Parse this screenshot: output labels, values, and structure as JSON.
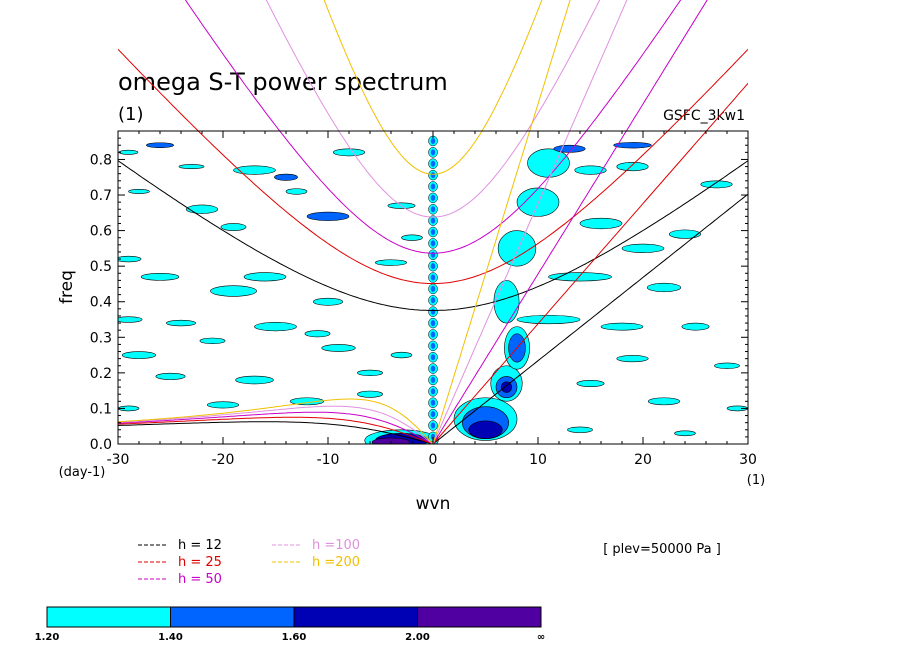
{
  "chart_data": {
    "type": "contour",
    "title": "omega S-T power spectrum",
    "subtitle": "(1)",
    "model_label": "GSFC_3kw1",
    "xlabel": "wvn",
    "ylabel": "freq",
    "x_unit_label": "(1)",
    "y_unit_label": "(day-1)",
    "xlim": [
      -30,
      30
    ],
    "ylim": [
      0,
      0.88
    ],
    "xticks": [
      "-30",
      "-20",
      "-10",
      "0",
      "10",
      "20",
      "30"
    ],
    "yticks": [
      "0.0",
      "0.1",
      "0.2",
      "0.3",
      "0.4",
      "0.5",
      "0.6",
      "0.7",
      "0.8"
    ],
    "annotation": "[ plev=50000 Pa ]",
    "legend_lines": [
      {
        "label": "h = 12",
        "color": "#000000",
        "h": 12
      },
      {
        "label": "h = 25",
        "color": "#e00000",
        "h": 25
      },
      {
        "label": "h = 50",
        "color": "#c800c8",
        "h": 50
      },
      {
        "label": "h =100",
        "color": "#e090e0",
        "h": 100
      },
      {
        "label": "h =200",
        "color": "#f0c000",
        "h": 200
      }
    ],
    "colorbar": {
      "labels": [
        "1.20",
        "1.40",
        "1.60",
        "2.00",
        "∞"
      ],
      "colors": [
        "#00ffff",
        "#0064ff",
        "#0000b4",
        "#5000a0"
      ]
    },
    "contour_blobs": [
      {
        "x": -29,
        "y": 0.82,
        "rx": 0.9,
        "ry": 0.006,
        "level": 0
      },
      {
        "x": -26,
        "y": 0.84,
        "rx": 1.3,
        "ry": 0.007,
        "level": 1
      },
      {
        "x": -23,
        "y": 0.78,
        "rx": 1.2,
        "ry": 0.006,
        "level": 0
      },
      {
        "x": -17,
        "y": 0.77,
        "rx": 2.0,
        "ry": 0.012,
        "level": 0
      },
      {
        "x": -14,
        "y": 0.75,
        "rx": 1.1,
        "ry": 0.009,
        "level": 1
      },
      {
        "x": -8,
        "y": 0.82,
        "rx": 1.5,
        "ry": 0.01,
        "level": 0
      },
      {
        "x": -28,
        "y": 0.71,
        "rx": 1.0,
        "ry": 0.006,
        "level": 0
      },
      {
        "x": -22,
        "y": 0.66,
        "rx": 1.5,
        "ry": 0.012,
        "level": 0
      },
      {
        "x": -13,
        "y": 0.71,
        "rx": 1.0,
        "ry": 0.008,
        "level": 0
      },
      {
        "x": -10,
        "y": 0.64,
        "rx": 2.0,
        "ry": 0.012,
        "level": 1
      },
      {
        "x": -3,
        "y": 0.67,
        "rx": 1.3,
        "ry": 0.008,
        "level": 0
      },
      {
        "x": -19,
        "y": 0.61,
        "rx": 1.2,
        "ry": 0.01,
        "level": 0
      },
      {
        "x": -29,
        "y": 0.52,
        "rx": 1.2,
        "ry": 0.008,
        "level": 0
      },
      {
        "x": -26,
        "y": 0.47,
        "rx": 1.8,
        "ry": 0.01,
        "level": 0
      },
      {
        "x": -16,
        "y": 0.47,
        "rx": 2.0,
        "ry": 0.012,
        "level": 0
      },
      {
        "x": -4,
        "y": 0.51,
        "rx": 1.5,
        "ry": 0.008,
        "level": 0
      },
      {
        "x": -2,
        "y": 0.58,
        "rx": 1.0,
        "ry": 0.008,
        "level": 0
      },
      {
        "x": -19,
        "y": 0.43,
        "rx": 2.2,
        "ry": 0.015,
        "level": 0
      },
      {
        "x": -10,
        "y": 0.4,
        "rx": 1.4,
        "ry": 0.01,
        "level": 0
      },
      {
        "x": -29,
        "y": 0.35,
        "rx": 1.3,
        "ry": 0.008,
        "level": 0
      },
      {
        "x": -24,
        "y": 0.34,
        "rx": 1.4,
        "ry": 0.008,
        "level": 0
      },
      {
        "x": -15,
        "y": 0.33,
        "rx": 2.0,
        "ry": 0.012,
        "level": 0
      },
      {
        "x": -11,
        "y": 0.31,
        "rx": 1.2,
        "ry": 0.009,
        "level": 0
      },
      {
        "x": -28,
        "y": 0.25,
        "rx": 1.6,
        "ry": 0.01,
        "level": 0
      },
      {
        "x": -21,
        "y": 0.29,
        "rx": 1.2,
        "ry": 0.008,
        "level": 0
      },
      {
        "x": -9,
        "y": 0.27,
        "rx": 1.6,
        "ry": 0.01,
        "level": 0
      },
      {
        "x": -3,
        "y": 0.25,
        "rx": 1.0,
        "ry": 0.008,
        "level": 0
      },
      {
        "x": -25,
        "y": 0.19,
        "rx": 1.4,
        "ry": 0.009,
        "level": 0
      },
      {
        "x": -17,
        "y": 0.18,
        "rx": 1.8,
        "ry": 0.011,
        "level": 0
      },
      {
        "x": -6,
        "y": 0.2,
        "rx": 1.2,
        "ry": 0.008,
        "level": 0
      },
      {
        "x": -29,
        "y": 0.1,
        "rx": 1.0,
        "ry": 0.007,
        "level": 0
      },
      {
        "x": -20,
        "y": 0.11,
        "rx": 1.5,
        "ry": 0.009,
        "level": 0
      },
      {
        "x": -12,
        "y": 0.12,
        "rx": 1.6,
        "ry": 0.01,
        "level": 0
      },
      {
        "x": -6,
        "y": 0.14,
        "rx": 1.2,
        "ry": 0.009,
        "level": 0
      },
      {
        "x": -3,
        "y": 0.01,
        "rx": 3.5,
        "ry": 0.03,
        "level": 0
      },
      {
        "x": -3,
        "y": 0.01,
        "rx": 2.5,
        "ry": 0.02,
        "level": 2
      },
      {
        "x": -4,
        "y": 0.005,
        "rx": 1.8,
        "ry": 0.012,
        "level": 3
      },
      {
        "x": 5,
        "y": 0.07,
        "rx": 3.0,
        "ry": 0.06,
        "level": 0
      },
      {
        "x": 5,
        "y": 0.06,
        "rx": 2.2,
        "ry": 0.045,
        "level": 1
      },
      {
        "x": 5,
        "y": 0.04,
        "rx": 1.6,
        "ry": 0.025,
        "level": 2
      },
      {
        "x": 7,
        "y": 0.17,
        "rx": 1.5,
        "ry": 0.05,
        "level": 0
      },
      {
        "x": 7,
        "y": 0.16,
        "rx": 1.0,
        "ry": 0.03,
        "level": 1
      },
      {
        "x": 7,
        "y": 0.16,
        "rx": 0.5,
        "ry": 0.015,
        "level": 2
      },
      {
        "x": 8,
        "y": 0.27,
        "rx": 1.2,
        "ry": 0.06,
        "level": 0
      },
      {
        "x": 8,
        "y": 0.27,
        "rx": 0.8,
        "ry": 0.04,
        "level": 1
      },
      {
        "x": 7,
        "y": 0.4,
        "rx": 1.2,
        "ry": 0.06,
        "level": 0
      },
      {
        "x": 8,
        "y": 0.55,
        "rx": 1.8,
        "ry": 0.05,
        "level": 0
      },
      {
        "x": 10,
        "y": 0.68,
        "rx": 2.0,
        "ry": 0.04,
        "level": 0
      },
      {
        "x": 11,
        "y": 0.79,
        "rx": 2.0,
        "ry": 0.04,
        "level": 0
      },
      {
        "x": 13,
        "y": 0.83,
        "rx": 1.5,
        "ry": 0.01,
        "level": 1
      },
      {
        "x": 15,
        "y": 0.77,
        "rx": 1.5,
        "ry": 0.012,
        "level": 0
      },
      {
        "x": 11,
        "y": 0.35,
        "rx": 3.0,
        "ry": 0.012,
        "level": 0
      },
      {
        "x": 14,
        "y": 0.47,
        "rx": 3.0,
        "ry": 0.012,
        "level": 0
      },
      {
        "x": 16,
        "y": 0.62,
        "rx": 2.0,
        "ry": 0.015,
        "level": 0
      },
      {
        "x": 20,
        "y": 0.55,
        "rx": 2.0,
        "ry": 0.012,
        "level": 0
      },
      {
        "x": 24,
        "y": 0.59,
        "rx": 1.5,
        "ry": 0.012,
        "level": 0
      },
      {
        "x": 19,
        "y": 0.84,
        "rx": 1.8,
        "ry": 0.008,
        "level": 1
      },
      {
        "x": 27,
        "y": 0.73,
        "rx": 1.5,
        "ry": 0.01,
        "level": 0
      },
      {
        "x": 22,
        "y": 0.44,
        "rx": 1.6,
        "ry": 0.012,
        "level": 0
      },
      {
        "x": 18,
        "y": 0.33,
        "rx": 2.0,
        "ry": 0.01,
        "level": 0
      },
      {
        "x": 25,
        "y": 0.33,
        "rx": 1.3,
        "ry": 0.01,
        "level": 0
      },
      {
        "x": 19,
        "y": 0.24,
        "rx": 1.5,
        "ry": 0.009,
        "level": 0
      },
      {
        "x": 28,
        "y": 0.22,
        "rx": 1.2,
        "ry": 0.008,
        "level": 0
      },
      {
        "x": 15,
        "y": 0.17,
        "rx": 1.3,
        "ry": 0.009,
        "level": 0
      },
      {
        "x": 22,
        "y": 0.12,
        "rx": 1.5,
        "ry": 0.01,
        "level": 0
      },
      {
        "x": 29,
        "y": 0.1,
        "rx": 1.0,
        "ry": 0.007,
        "level": 0
      },
      {
        "x": 14,
        "y": 0.04,
        "rx": 1.2,
        "ry": 0.008,
        "level": 0
      },
      {
        "x": 24,
        "y": 0.03,
        "rx": 1.0,
        "ry": 0.007,
        "level": 0
      },
      {
        "x": 19,
        "y": 0.78,
        "rx": 1.5,
        "ry": 0.012,
        "level": 0
      }
    ]
  }
}
